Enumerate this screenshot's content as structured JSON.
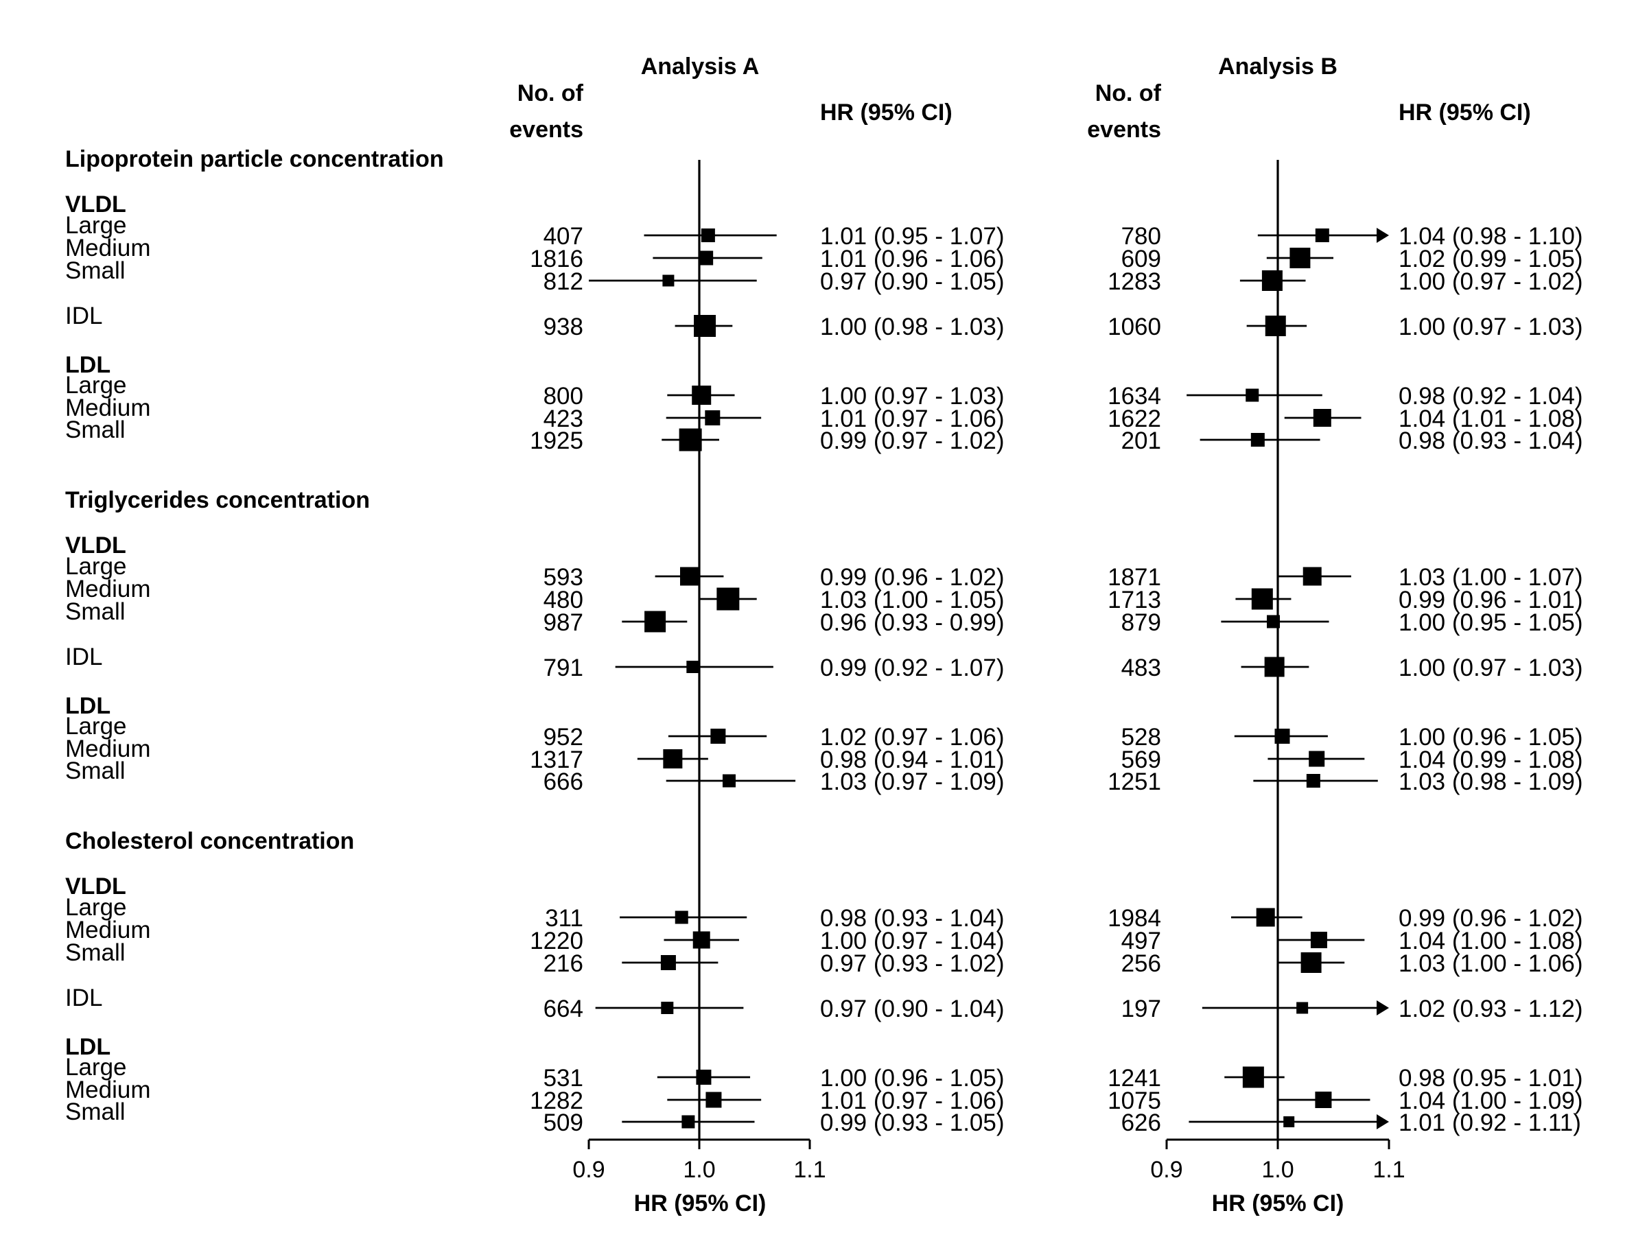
{
  "chart_data": {
    "type": "forest",
    "panels": [
      {
        "title": "Analysis A",
        "events_header": [
          "No. of",
          "events"
        ],
        "hr_header": "HR (95% CI)",
        "xlabel": "HR (95% CI)",
        "xlim": [
          0.9,
          1.1
        ],
        "ticks": [
          "0.9",
          "1.0",
          "1.1"
        ],
        "reference_line": 1.0
      },
      {
        "title": "Analysis B",
        "events_header": [
          "No. of",
          "events"
        ],
        "hr_header": "HR (95% CI)",
        "xlabel": "HR (95% CI)",
        "xlim": [
          0.9,
          1.1
        ],
        "ticks": [
          "0.9",
          "1.0",
          "1.1"
        ],
        "reference_line": 1.0
      }
    ],
    "sections": [
      {
        "title": "Lipoprotein particle concentration",
        "groups": [
          {
            "name": "VLDL",
            "rows": [
              {
                "label": "Large",
                "A": {
                  "n": "407",
                  "text": "1.01 (0.95 - 1.07)",
                  "hr": 1.008,
                  "lo": 0.95,
                  "hi": 1.07,
                  "w": 0.5
                },
                "B": {
                  "n": "780",
                  "text": "1.04 (0.98 - 1.10)",
                  "hr": 1.04,
                  "lo": 0.982,
                  "hi": 1.1,
                  "w": 0.5
                }
              },
              {
                "label": "Medium",
                "A": {
                  "n": "1816",
                  "text": "1.01 (0.96 - 1.06)",
                  "hr": 1.006,
                  "lo": 0.958,
                  "hi": 1.057,
                  "w": 0.55
                },
                "B": {
                  "n": "609",
                  "text": "1.02 (0.99 - 1.05)",
                  "hr": 1.02,
                  "lo": 0.99,
                  "hi": 1.05,
                  "w": 1.0
                }
              },
              {
                "label": "Small",
                "A": {
                  "n": "812",
                  "text": "0.97 (0.90 - 1.05)",
                  "hr": 0.972,
                  "lo": 0.9,
                  "hi": 1.052,
                  "w": 0.35
                },
                "B": {
                  "n": "1283",
                  "text": "1.00 (0.97 - 1.02)",
                  "hr": 0.995,
                  "lo": 0.966,
                  "hi": 1.025,
                  "w": 1.0
                }
              }
            ]
          },
          {
            "name": "IDL",
            "single": true,
            "rows": [
              {
                "label": "IDL",
                "A": {
                  "n": "938",
                  "text": "1.00 (0.98 - 1.03)",
                  "hr": 1.005,
                  "lo": 0.978,
                  "hi": 1.03,
                  "w": 1.1
                },
                "B": {
                  "n": "1060",
                  "text": "1.00 (0.97 - 1.03)",
                  "hr": 0.998,
                  "lo": 0.972,
                  "hi": 1.026,
                  "w": 1.0
                }
              }
            ]
          },
          {
            "name": "LDL",
            "rows": [
              {
                "label": "Large",
                "A": {
                  "n": "800",
                  "text": "1.00 (0.97 - 1.03)",
                  "hr": 1.002,
                  "lo": 0.971,
                  "hi": 1.032,
                  "w": 0.9
                },
                "B": {
                  "n": "1634",
                  "text": "0.98 (0.92 - 1.04)",
                  "hr": 0.977,
                  "lo": 0.918,
                  "hi": 1.04,
                  "w": 0.45
                }
              },
              {
                "label": "Medium",
                "A": {
                  "n": "423",
                  "text": "1.01 (0.97 - 1.06)",
                  "hr": 1.012,
                  "lo": 0.97,
                  "hi": 1.056,
                  "w": 0.6
                },
                "B": {
                  "n": "1622",
                  "text": "1.04 (1.01 - 1.08)",
                  "hr": 1.04,
                  "lo": 1.006,
                  "hi": 1.075,
                  "w": 0.8
                }
              },
              {
                "label": "Small",
                "A": {
                  "n": "1925",
                  "text": "0.99 (0.97 - 1.02)",
                  "hr": 0.992,
                  "lo": 0.966,
                  "hi": 1.018,
                  "w": 1.15
                },
                "B": {
                  "n": "201",
                  "text": "0.98 (0.93 - 1.04)",
                  "hr": 0.982,
                  "lo": 0.93,
                  "hi": 1.038,
                  "w": 0.5
                }
              }
            ]
          }
        ]
      },
      {
        "title": "Triglycerides concentration",
        "groups": [
          {
            "name": "VLDL",
            "rows": [
              {
                "label": "Large",
                "A": {
                  "n": "593",
                  "text": "0.99 (0.96 - 1.02)",
                  "hr": 0.991,
                  "lo": 0.96,
                  "hi": 1.022,
                  "w": 0.85
                },
                "B": {
                  "n": "1871",
                  "text": "1.03 (1.00 - 1.07)",
                  "hr": 1.031,
                  "lo": 1.0,
                  "hi": 1.066,
                  "w": 0.85
                }
              },
              {
                "label": "Medium",
                "A": {
                  "n": "480",
                  "text": "1.03 (1.00 - 1.05)",
                  "hr": 1.026,
                  "lo": 1.0,
                  "hi": 1.052,
                  "w": 1.15
                },
                "B": {
                  "n": "1713",
                  "text": "0.99 (0.96 - 1.01)",
                  "hr": 0.986,
                  "lo": 0.962,
                  "hi": 1.012,
                  "w": 1.05
                }
              },
              {
                "label": "Small",
                "A": {
                  "n": "987",
                  "text": "0.96 (0.93 - 0.99)",
                  "hr": 0.96,
                  "lo": 0.93,
                  "hi": 0.989,
                  "w": 1.05
                },
                "B": {
                  "n": "879",
                  "text": "1.00 (0.95 - 1.05)",
                  "hr": 0.996,
                  "lo": 0.949,
                  "hi": 1.046,
                  "w": 0.45
                }
              }
            ]
          },
          {
            "name": "IDL",
            "single": true,
            "rows": [
              {
                "label": "IDL",
                "A": {
                  "n": "791",
                  "text": "0.99 (0.92 - 1.07)",
                  "hr": 0.994,
                  "lo": 0.924,
                  "hi": 1.067,
                  "w": 0.4
                },
                "B": {
                  "n": "483",
                  "text": "1.00 (0.97 - 1.03)",
                  "hr": 0.997,
                  "lo": 0.967,
                  "hi": 1.028,
                  "w": 0.95
                }
              }
            ]
          },
          {
            "name": "LDL",
            "rows": [
              {
                "label": "Large",
                "A": {
                  "n": "952",
                  "text": "1.02 (0.97 - 1.06)",
                  "hr": 1.017,
                  "lo": 0.972,
                  "hi": 1.061,
                  "w": 0.6
                },
                "B": {
                  "n": "528",
                  "text": "1.00 (0.96 - 1.05)",
                  "hr": 1.004,
                  "lo": 0.961,
                  "hi": 1.045,
                  "w": 0.6
                }
              },
              {
                "label": "Medium",
                "A": {
                  "n": "1317",
                  "text": "0.98 (0.94 - 1.01)",
                  "hr": 0.976,
                  "lo": 0.944,
                  "hi": 1.008,
                  "w": 0.9
                },
                "B": {
                  "n": "569",
                  "text": "1.04 (0.99 - 1.08)",
                  "hr": 1.035,
                  "lo": 0.991,
                  "hi": 1.078,
                  "w": 0.65
                }
              },
              {
                "label": "Small",
                "A": {
                  "n": "666",
                  "text": "1.03 (0.97 - 1.09)",
                  "hr": 1.027,
                  "lo": 0.97,
                  "hi": 1.087,
                  "w": 0.45
                },
                "B": {
                  "n": "1251",
                  "text": "1.03 (0.98 - 1.09)",
                  "hr": 1.032,
                  "lo": 0.978,
                  "hi": 1.09,
                  "w": 0.5
                }
              }
            ]
          }
        ]
      },
      {
        "title": "Cholesterol concentration",
        "groups": [
          {
            "name": "VLDL",
            "rows": [
              {
                "label": "Large",
                "A": {
                  "n": "311",
                  "text": "0.98 (0.93 - 1.04)",
                  "hr": 0.984,
                  "lo": 0.928,
                  "hi": 1.043,
                  "w": 0.45
                },
                "B": {
                  "n": "1984",
                  "text": "0.99 (0.96 - 1.02)",
                  "hr": 0.989,
                  "lo": 0.958,
                  "hi": 1.022,
                  "w": 0.85
                }
              },
              {
                "label": "Medium",
                "A": {
                  "n": "1220",
                  "text": "1.00 (0.97 - 1.04)",
                  "hr": 1.002,
                  "lo": 0.968,
                  "hi": 1.036,
                  "w": 0.75
                },
                "B": {
                  "n": "497",
                  "text": "1.04 (1.00 - 1.08)",
                  "hr": 1.037,
                  "lo": 1.0,
                  "hi": 1.078,
                  "w": 0.7
                }
              },
              {
                "label": "Small",
                "A": {
                  "n": "216",
                  "text": "0.97 (0.93 - 1.02)",
                  "hr": 0.972,
                  "lo": 0.93,
                  "hi": 1.017,
                  "w": 0.6
                },
                "B": {
                  "n": "256",
                  "text": "1.03 (1.00 - 1.06)",
                  "hr": 1.03,
                  "lo": 1.0,
                  "hi": 1.06,
                  "w": 1.0
                }
              }
            ]
          },
          {
            "name": "IDL",
            "single": true,
            "rows": [
              {
                "label": "IDL",
                "A": {
                  "n": "664",
                  "text": "0.97 (0.90 - 1.04)",
                  "hr": 0.971,
                  "lo": 0.906,
                  "hi": 1.04,
                  "w": 0.4
                },
                "B": {
                  "n": "197",
                  "text": "1.02 (0.93 - 1.12)",
                  "hr": 1.022,
                  "lo": 0.932,
                  "hi": 1.12,
                  "w": 0.35
                }
              }
            ]
          },
          {
            "name": "LDL",
            "rows": [
              {
                "label": "Large",
                "A": {
                  "n": "531",
                  "text": "1.00 (0.96 - 1.05)",
                  "hr": 1.004,
                  "lo": 0.962,
                  "hi": 1.046,
                  "w": 0.6
                },
                "B": {
                  "n": "1241",
                  "text": "0.98 (0.95 - 1.01)",
                  "hr": 0.978,
                  "lo": 0.952,
                  "hi": 1.006,
                  "w": 1.05
                }
              },
              {
                "label": "Medium",
                "A": {
                  "n": "1282",
                  "text": "1.01 (0.97 - 1.06)",
                  "hr": 1.013,
                  "lo": 0.971,
                  "hi": 1.056,
                  "w": 0.65
                },
                "B": {
                  "n": "1075",
                  "text": "1.04 (1.00 - 1.09)",
                  "hr": 1.041,
                  "lo": 1.0,
                  "hi": 1.083,
                  "w": 0.7
                }
              },
              {
                "label": "Small",
                "A": {
                  "n": "509",
                  "text": "0.99 (0.93 - 1.05)",
                  "hr": 0.99,
                  "lo": 0.93,
                  "hi": 1.05,
                  "w": 0.45
                },
                "B": {
                  "n": "626",
                  "text": "1.01 (0.92 - 1.11)",
                  "hr": 1.01,
                  "lo": 0.92,
                  "hi": 1.11,
                  "w": 0.3
                }
              }
            ]
          }
        ]
      }
    ]
  }
}
